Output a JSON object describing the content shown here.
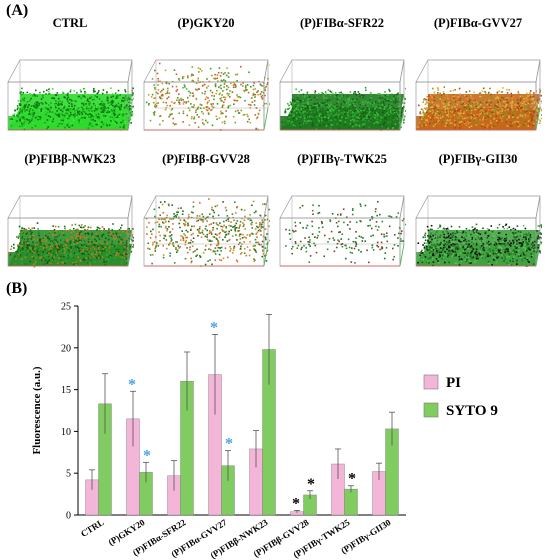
{
  "panel_a": {
    "label": "(A)",
    "images": [
      {
        "title": "CTRL",
        "base": "#2fd92f",
        "dots": [
          "#1a9a1a",
          "#37e637",
          "#0d6d0d"
        ],
        "density": 0.95
      },
      {
        "title": "(P)GKY20",
        "base": "#ffffff",
        "dots": [
          "#c8a12a",
          "#3a9c2a",
          "#d9542a",
          "#7fa32a"
        ],
        "density": 0.45
      },
      {
        "title": "(P)FIBα-SFR22",
        "base": "#1f7a1f",
        "dots": [
          "#2b9b2b",
          "#156015",
          "#3cba3c"
        ],
        "density": 0.95
      },
      {
        "title": "(P)FIBα-GVV27",
        "base": "#c4681d",
        "dots": [
          "#e0902a",
          "#a84a15",
          "#7a9a25",
          "#e8b040"
        ],
        "density": 0.95
      },
      {
        "title": "(P)FIBβ-NWK23",
        "base": "#2a8f2a",
        "dots": [
          "#1d6e1d",
          "#c87a25",
          "#35a635",
          "#145514"
        ],
        "density": 0.9
      },
      {
        "title": "(P)FIBβ-GVV28",
        "base": "#ffffff",
        "dots": [
          "#2f8f2f",
          "#c9902a",
          "#1f6f1f",
          "#d86a2a"
        ],
        "density": 0.55
      },
      {
        "title": "(P)FIBγ-TWK25",
        "base": "#ffffff",
        "dots": [
          "#2f8f2f",
          "#1f6f1f",
          "#8a3a2a"
        ],
        "density": 0.22
      },
      {
        "title": "(P)FIBγ-GII30",
        "base": "#3fa33f",
        "dots": [
          "#2a7a2a",
          "#5fc05f",
          "#1a5a1a",
          "#111111"
        ],
        "density": 0.9
      }
    ]
  },
  "panel_b": {
    "label": "(B)"
  },
  "chart_data": {
    "type": "bar",
    "title": "",
    "xlabel": "",
    "ylabel": "Fluorescence (a.u.)",
    "ylim": [
      0,
      25
    ],
    "yticks": [
      0,
      5,
      10,
      15,
      20,
      25
    ],
    "grid": false,
    "legend_position": "right",
    "categories": [
      "CTRL",
      "(P)GKY20",
      "(P)FIBα-SFR22",
      "(P)FIBα-GVV27",
      "(P)FIBβ-NWK23",
      "(P)FIBβ-GVV28",
      "(P)FIBγ-TWK25",
      "(P)FIBγ-GII30"
    ],
    "series": [
      {
        "name": "PI",
        "color": "#f4b6d8",
        "values": [
          4.2,
          11.5,
          4.7,
          16.8,
          7.9,
          0.4,
          6.1,
          5.2
        ],
        "errors": [
          1.2,
          3.3,
          1.8,
          4.8,
          2.2,
          0.15,
          1.8,
          1.0
        ]
      },
      {
        "name": "SYTO 9",
        "color": "#80cc60",
        "values": [
          13.3,
          5.1,
          16.0,
          5.9,
          19.8,
          2.4,
          3.1,
          10.3
        ],
        "errors": [
          3.6,
          1.2,
          3.5,
          1.8,
          4.2,
          0.5,
          0.4,
          2.0
        ]
      }
    ],
    "annotations": [
      {
        "category": 1,
        "series": 0,
        "text": "*",
        "color": "#4aa3e8"
      },
      {
        "category": 1,
        "series": 1,
        "text": "*",
        "color": "#4aa3e8"
      },
      {
        "category": 3,
        "series": 0,
        "text": "*",
        "color": "#4aa3e8"
      },
      {
        "category": 3,
        "series": 1,
        "text": "*",
        "color": "#4aa3e8"
      },
      {
        "category": 5,
        "series": 0,
        "text": "*",
        "color": "#000000"
      },
      {
        "category": 5,
        "series": 1,
        "text": "*",
        "color": "#000000"
      },
      {
        "category": 6,
        "series": 1,
        "text": "*",
        "color": "#000000"
      }
    ]
  }
}
